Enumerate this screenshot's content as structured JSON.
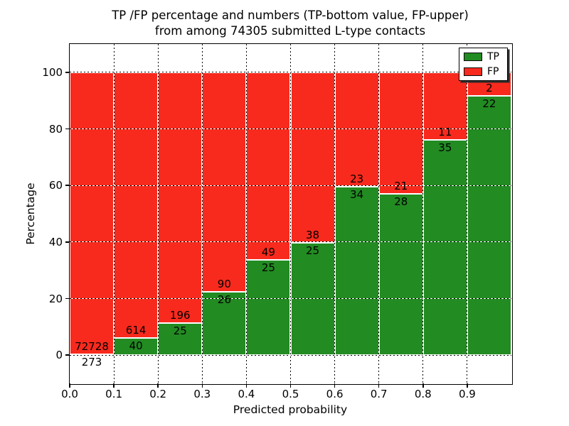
{
  "figure": {
    "title_line1": "TP /FP percentage and numbers (TP-bottom value, FP-upper)",
    "title_line2": "from among 74305 submitted L-type contacts"
  },
  "axes": {
    "xlabel": "Predicted probability",
    "ylabel": "Percentage",
    "xlim": [
      0.0,
      1.0
    ],
    "ylim": [
      -10,
      110
    ],
    "x_tick_values": [
      0.0,
      0.1,
      0.2,
      0.3,
      0.4,
      0.5,
      0.6,
      0.7,
      0.8,
      0.9
    ],
    "x_tick_labels": [
      "0.0",
      "0.1",
      "0.2",
      "0.3",
      "0.4",
      "0.5",
      "0.6",
      "0.7",
      "0.8",
      "0.9"
    ],
    "y_tick_values": [
      0,
      20,
      40,
      60,
      80,
      100
    ],
    "y_tick_labels": [
      "0",
      "20",
      "40",
      "60",
      "80",
      "100"
    ],
    "grid_style": "dotted"
  },
  "legend": {
    "position": "upper-right",
    "entries": [
      {
        "label": "TP",
        "color": "#228b22"
      },
      {
        "label": "FP",
        "color": "#f82a1d"
      }
    ]
  },
  "chart_data": {
    "type": "bar",
    "stacked": true,
    "normalized": "each bin stacked to 100%",
    "title": "TP /FP percentage and numbers (TP-bottom value, FP-upper) from among 74305 submitted L-type contacts",
    "xlabel": "Predicted probability",
    "ylabel": "Percentage",
    "total_submitted_contacts": 74305,
    "bin_width": 0.1,
    "bin_starts": [
      0.0,
      0.1,
      0.2,
      0.3,
      0.4,
      0.5,
      0.6,
      0.7,
      0.8,
      0.9
    ],
    "series": [
      {
        "name": "TP",
        "color": "#228b22",
        "counts": [
          273,
          40,
          25,
          26,
          25,
          25,
          34,
          28,
          35,
          22
        ]
      },
      {
        "name": "FP",
        "color": "#f82a1d",
        "counts": [
          72728,
          614,
          196,
          90,
          49,
          38,
          23,
          21,
          11,
          2
        ]
      }
    ],
    "tp_percent": [
      0.37,
      6.12,
      11.31,
      22.41,
      33.78,
      39.68,
      59.65,
      57.14,
      76.09,
      91.67
    ],
    "fp_percent": [
      99.63,
      93.88,
      88.69,
      77.59,
      66.22,
      60.32,
      40.35,
      42.86,
      23.91,
      8.33
    ],
    "bar_edge_color": "#ffffff",
    "xlim": [
      0.0,
      1.0
    ],
    "ylim": [
      -10,
      110
    ],
    "grid": true,
    "legend_position": "upper-right"
  }
}
